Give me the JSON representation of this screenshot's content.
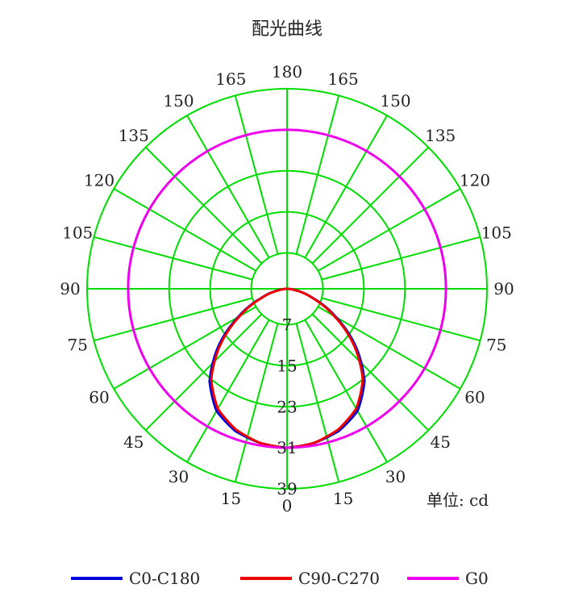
{
  "chart_data": {
    "type": "polar",
    "title": "配光曲线",
    "unit_label": "单位: cd",
    "grid_color": "#00dd00",
    "radial_ticks": [
      7,
      15,
      23,
      31,
      39
    ],
    "r_max": 39,
    "angle_labels_left": [
      0,
      15,
      30,
      45,
      60,
      75,
      90,
      105,
      120,
      135,
      150,
      165
    ],
    "angle_labels_right": [
      15,
      30,
      45,
      60,
      75,
      90,
      105,
      120,
      135,
      150,
      165
    ],
    "top_label": 180,
    "series": [
      {
        "name": "C0-C180",
        "color": "#0000dd",
        "angles": [
          0,
          10,
          20,
          30,
          40,
          50,
          60,
          70,
          80,
          85,
          90
        ],
        "values": [
          31,
          30.5,
          29.5,
          27.5,
          23.5,
          17.5,
          11,
          5.5,
          1.8,
          0.7,
          0
        ]
      },
      {
        "name": "C90-C270",
        "color": "#ee0000",
        "angles": [
          0,
          10,
          20,
          30,
          40,
          50,
          60,
          70,
          80,
          85,
          90
        ],
        "values": [
          31,
          30.5,
          29.2,
          27,
          23,
          17,
          10.6,
          5.3,
          1.7,
          0.7,
          0
        ]
      },
      {
        "name": "G0",
        "color": "#ee00ee",
        "constant": 31
      }
    ]
  }
}
